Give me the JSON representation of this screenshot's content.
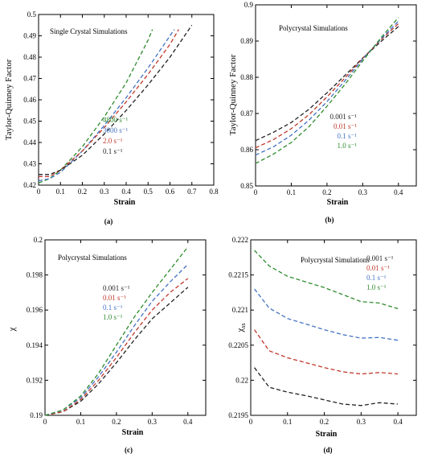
{
  "chart_data": [
    {
      "panel": "a",
      "type": "line",
      "caption": "(a)",
      "title": "Single Crystal Simulations",
      "xlabel": "Strain",
      "ylabel": "Taylor-Quinney Factor",
      "xlim": [
        0,
        0.8
      ],
      "ylim": [
        0.42,
        0.5
      ],
      "xticks": [
        0,
        0.1,
        0.2,
        0.3,
        0.4,
        0.5,
        0.6,
        0.7,
        0.8
      ],
      "xtick_labels": [
        "0",
        "0.1",
        "0.2",
        "0.3",
        "0.4",
        "0.5",
        "0.6",
        "0.7",
        "0.8"
      ],
      "yticks": [
        0.42,
        0.43,
        0.44,
        0.45,
        0.46,
        0.47,
        0.48,
        0.49,
        0.5
      ],
      "ytick_labels": [
        "0.42",
        "0.43",
        "0.44",
        "0.45",
        "0.46",
        "0.47",
        "0.48",
        "0.49",
        "0.5"
      ],
      "grid": false,
      "legend_position": "middle-right",
      "series": [
        {
          "name": "4800 s⁻¹",
          "color": "#2e8b2e",
          "x": [
            0,
            0.05,
            0.1,
            0.2,
            0.3,
            0.4,
            0.5,
            0.52
          ],
          "y": [
            0.421,
            0.423,
            0.427,
            0.438,
            0.452,
            0.468,
            0.488,
            0.493
          ]
        },
        {
          "name": "3000 s⁻¹",
          "color": "#4472c4",
          "x": [
            0,
            0.05,
            0.1,
            0.2,
            0.3,
            0.4,
            0.5,
            0.6,
            0.62
          ],
          "y": [
            0.422,
            0.423,
            0.426,
            0.436,
            0.448,
            0.461,
            0.475,
            0.49,
            0.493
          ]
        },
        {
          "name": "2.0 s⁻¹",
          "color": "#c0392b",
          "x": [
            0,
            0.05,
            0.1,
            0.2,
            0.3,
            0.4,
            0.5,
            0.6,
            0.64
          ],
          "y": [
            0.424,
            0.424,
            0.427,
            0.436,
            0.447,
            0.459,
            0.472,
            0.486,
            0.493
          ]
        },
        {
          "name": "0.1 s⁻¹",
          "color": "#222222",
          "x": [
            0,
            0.05,
            0.1,
            0.2,
            0.3,
            0.4,
            0.5,
            0.6,
            0.7
          ],
          "y": [
            0.425,
            0.425,
            0.427,
            0.434,
            0.444,
            0.455,
            0.467,
            0.48,
            0.495
          ]
        }
      ]
    },
    {
      "panel": "b",
      "type": "line",
      "caption": "(b)",
      "title": "Polycrystal Simulations",
      "xlabel": "Strain",
      "ylabel": "Taylor-Quinney Factor",
      "xlim": [
        0,
        0.45
      ],
      "ylim": [
        0.85,
        0.9
      ],
      "xticks": [
        0,
        0.1,
        0.2,
        0.3,
        0.4
      ],
      "xtick_labels": [
        "0",
        "0.1",
        "0.2",
        "0.3",
        "0.4"
      ],
      "yticks": [
        0.85,
        0.86,
        0.87,
        0.88,
        0.89,
        0.9
      ],
      "ytick_labels": [
        "0.85",
        "0.86",
        "0.87",
        "0.88",
        "0.89",
        "0.9"
      ],
      "grid": false,
      "legend_position": "middle-right",
      "series": [
        {
          "name": "0.001 s⁻¹",
          "color": "#222222",
          "x": [
            0,
            0.05,
            0.1,
            0.15,
            0.2,
            0.25,
            0.3,
            0.35,
            0.4
          ],
          "y": [
            0.8625,
            0.8648,
            0.8675,
            0.8712,
            0.8757,
            0.8805,
            0.8853,
            0.8898,
            0.894
          ]
        },
        {
          "name": "0.01 s⁻¹",
          "color": "#c0392b",
          "x": [
            0,
            0.05,
            0.1,
            0.15,
            0.2,
            0.25,
            0.3,
            0.35,
            0.4
          ],
          "y": [
            0.8605,
            0.8628,
            0.8658,
            0.8697,
            0.8746,
            0.8798,
            0.8852,
            0.8903,
            0.8948
          ]
        },
        {
          "name": "0.1 s⁻¹",
          "color": "#4472c4",
          "x": [
            0,
            0.05,
            0.1,
            0.15,
            0.2,
            0.25,
            0.3,
            0.35,
            0.4
          ],
          "y": [
            0.8585,
            0.8608,
            0.864,
            0.8682,
            0.8733,
            0.879,
            0.885,
            0.8905,
            0.8955
          ]
        },
        {
          "name": "1.0 s⁻¹",
          "color": "#2e8b2e",
          "x": [
            0,
            0.05,
            0.1,
            0.15,
            0.2,
            0.25,
            0.3,
            0.35,
            0.4
          ],
          "y": [
            0.8562,
            0.8588,
            0.862,
            0.8664,
            0.872,
            0.878,
            0.8845,
            0.8908,
            0.8965
          ]
        }
      ]
    },
    {
      "panel": "c",
      "type": "line",
      "caption": "(c)",
      "title": "Polycrystal Simulations",
      "xlabel": "Strain",
      "ylabel": "χ",
      "xlim": [
        0,
        0.45
      ],
      "ylim": [
        0.19,
        0.2
      ],
      "xticks": [
        0,
        0.1,
        0.2,
        0.3,
        0.4
      ],
      "xtick_labels": [
        "0",
        "0.1",
        "0.2",
        "0.3",
        "0.4"
      ],
      "yticks": [
        0.19,
        0.192,
        0.194,
        0.196,
        0.198,
        0.2
      ],
      "ytick_labels": [
        "0.19",
        "0.192",
        "0.194",
        "0.196",
        "0.198",
        "0.2"
      ],
      "grid": false,
      "legend_position": "upper-left",
      "series": [
        {
          "name": "0.001 s⁻¹",
          "color": "#222222",
          "x": [
            0,
            0.05,
            0.1,
            0.15,
            0.2,
            0.25,
            0.3,
            0.35,
            0.4
          ],
          "y": [
            0.19,
            0.1902,
            0.1908,
            0.1918,
            0.193,
            0.1943,
            0.1955,
            0.1964,
            0.1973
          ]
        },
        {
          "name": "0.01 s⁻¹",
          "color": "#c0392b",
          "x": [
            0,
            0.05,
            0.1,
            0.15,
            0.2,
            0.25,
            0.3,
            0.35,
            0.4
          ],
          "y": [
            0.19,
            0.1902,
            0.1909,
            0.192,
            0.1933,
            0.1947,
            0.196,
            0.197,
            0.1978
          ]
        },
        {
          "name": "0.1 s⁻¹",
          "color": "#4472c4",
          "x": [
            0,
            0.05,
            0.1,
            0.15,
            0.2,
            0.25,
            0.3,
            0.35,
            0.4
          ],
          "y": [
            0.19,
            0.1903,
            0.191,
            0.1922,
            0.1936,
            0.1951,
            0.1965,
            0.1976,
            0.1986
          ]
        },
        {
          "name": "1.0 s⁻¹",
          "color": "#2e8b2e",
          "x": [
            0,
            0.05,
            0.1,
            0.15,
            0.2,
            0.25,
            0.3,
            0.35,
            0.4
          ],
          "y": [
            0.19,
            0.1903,
            0.1911,
            0.1924,
            0.194,
            0.1956,
            0.197,
            0.1983,
            0.1996
          ]
        }
      ]
    },
    {
      "panel": "d",
      "type": "line",
      "caption": "(d)",
      "title": "Polycrystal Simulations",
      "xlabel": "Strain",
      "ylabel": "χ",
      "ylabel_sub": "ss",
      "xlim": [
        0,
        0.45
      ],
      "ylim": [
        0.2195,
        0.222
      ],
      "xticks": [
        0,
        0.1,
        0.2,
        0.3,
        0.4
      ],
      "xtick_labels": [
        "0",
        "0.1",
        "0.2",
        "0.3",
        "0.4"
      ],
      "yticks": [
        0.2195,
        0.22,
        0.2205,
        0.221,
        0.2215,
        0.222
      ],
      "ytick_labels": [
        "0.2195",
        "0.22",
        "0.2205",
        "0.221",
        "0.2215",
        "0.222"
      ],
      "grid": false,
      "legend_position": "top-right",
      "series": [
        {
          "name": "0.001 s⁻¹",
          "color": "#222222",
          "x": [
            0.01,
            0.05,
            0.1,
            0.15,
            0.2,
            0.25,
            0.3,
            0.35,
            0.4
          ],
          "y": [
            0.22018,
            0.2199,
            0.21983,
            0.21978,
            0.21972,
            0.21966,
            0.21964,
            0.21968,
            0.21966
          ]
        },
        {
          "name": "0.01 s⁻¹",
          "color": "#c0392b",
          "x": [
            0.01,
            0.05,
            0.1,
            0.15,
            0.2,
            0.25,
            0.3,
            0.35,
            0.4
          ],
          "y": [
            0.22072,
            0.22042,
            0.22032,
            0.22025,
            0.22018,
            0.22012,
            0.22009,
            0.22011,
            0.22009
          ]
        },
        {
          "name": "0.1 s⁻¹",
          "color": "#4472c4",
          "x": [
            0.01,
            0.05,
            0.1,
            0.15,
            0.2,
            0.25,
            0.3,
            0.35,
            0.4
          ],
          "y": [
            0.2213,
            0.22103,
            0.22088,
            0.2208,
            0.22072,
            0.22065,
            0.2206,
            0.22061,
            0.22057
          ]
        },
        {
          "name": "1.0 s⁻¹",
          "color": "#2e8b2e",
          "x": [
            0.01,
            0.05,
            0.1,
            0.15,
            0.2,
            0.25,
            0.3,
            0.35,
            0.4
          ],
          "y": [
            0.22185,
            0.22163,
            0.22148,
            0.2214,
            0.22132,
            0.22122,
            0.22112,
            0.2211,
            0.22102
          ]
        }
      ]
    }
  ]
}
